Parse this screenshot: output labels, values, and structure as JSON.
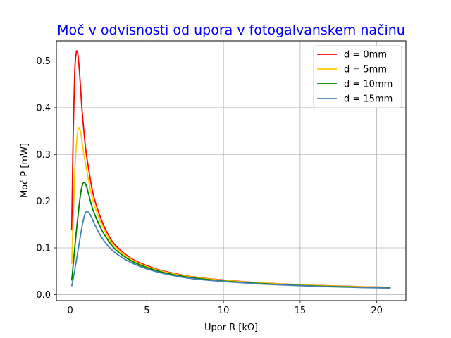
{
  "chart_data": {
    "type": "line",
    "title": "Moč v odvisnosti od upora v fotogalvanskem načinu",
    "title_color": "#0000ff",
    "xlabel": "Upor R [kΩ]",
    "ylabel": "Moč P [mW]",
    "xlim": [
      -0.9,
      21.9
    ],
    "ylim": [
      -0.013,
      0.543
    ],
    "xticks": [
      0,
      5,
      10,
      15,
      20
    ],
    "xtick_labels": [
      "0",
      "5",
      "10",
      "15",
      "20"
    ],
    "yticks": [
      0.0,
      0.1,
      0.2,
      0.3,
      0.4,
      0.5
    ],
    "ytick_labels": [
      "0.0",
      "0.1",
      "0.2",
      "0.3",
      "0.4",
      "0.5"
    ],
    "grid": true,
    "legend_position": "top-right",
    "series": [
      {
        "name": "d = 0mm",
        "color": "#ff0000",
        "x": [
          0.1,
          0.2,
          0.3,
          0.4,
          0.45,
          0.5,
          0.6,
          0.7,
          0.8,
          1.0,
          1.2,
          1.5,
          2,
          2.5,
          3,
          4,
          5,
          6,
          7,
          8,
          10,
          12,
          14,
          16,
          18,
          20,
          20.9
        ],
        "y": [
          0.138,
          0.35,
          0.48,
          0.518,
          0.52,
          0.515,
          0.48,
          0.43,
          0.385,
          0.315,
          0.27,
          0.215,
          0.163,
          0.127,
          0.104,
          0.077,
          0.062,
          0.051,
          0.044,
          0.038,
          0.031,
          0.026,
          0.0225,
          0.0198,
          0.0178,
          0.0162,
          0.0155
        ]
      },
      {
        "name": "d = 5mm",
        "color": "#ffcc00",
        "x": [
          0.1,
          0.2,
          0.3,
          0.4,
          0.5,
          0.6,
          0.7,
          0.8,
          1.0,
          1.2,
          1.5,
          2,
          2.5,
          3,
          4,
          5,
          6,
          7,
          8,
          10,
          12,
          14,
          16,
          18,
          20,
          20.9
        ],
        "y": [
          0.065,
          0.17,
          0.26,
          0.32,
          0.35,
          0.356,
          0.345,
          0.32,
          0.28,
          0.245,
          0.2,
          0.155,
          0.122,
          0.1,
          0.075,
          0.06,
          0.05,
          0.043,
          0.0375,
          0.0305,
          0.0257,
          0.0222,
          0.0195,
          0.0175,
          0.016,
          0.0153
        ]
      },
      {
        "name": "d = 10mm",
        "color": "#008000",
        "x": [
          0.1,
          0.2,
          0.3,
          0.4,
          0.5,
          0.6,
          0.7,
          0.8,
          0.9,
          1.0,
          1.1,
          1.2,
          1.5,
          2,
          2.5,
          3,
          4,
          5,
          6,
          7,
          8,
          10,
          12,
          14,
          16,
          18,
          20,
          20.9
        ],
        "y": [
          0.03,
          0.065,
          0.1,
          0.135,
          0.165,
          0.195,
          0.22,
          0.235,
          0.24,
          0.237,
          0.228,
          0.215,
          0.18,
          0.142,
          0.115,
          0.095,
          0.072,
          0.058,
          0.048,
          0.041,
          0.036,
          0.029,
          0.0245,
          0.021,
          0.0185,
          0.0165,
          0.015,
          0.0143
        ]
      },
      {
        "name": "d = 15mm",
        "color": "#4682b4",
        "x": [
          0.1,
          0.2,
          0.3,
          0.4,
          0.5,
          0.6,
          0.7,
          0.8,
          0.9,
          1.0,
          1.1,
          1.2,
          1.4,
          1.6,
          2,
          2.5,
          3,
          4,
          5,
          6,
          7,
          8,
          10,
          12,
          14,
          16,
          18,
          20,
          20.9
        ],
        "y": [
          0.018,
          0.035,
          0.053,
          0.072,
          0.092,
          0.112,
          0.132,
          0.15,
          0.165,
          0.175,
          0.178,
          0.176,
          0.165,
          0.15,
          0.125,
          0.103,
          0.088,
          0.068,
          0.055,
          0.046,
          0.039,
          0.034,
          0.028,
          0.0235,
          0.0203,
          0.0178,
          0.0158,
          0.0143,
          0.0137
        ]
      }
    ]
  }
}
